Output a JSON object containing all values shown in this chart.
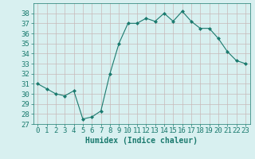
{
  "x": [
    0,
    1,
    2,
    3,
    4,
    5,
    6,
    7,
    8,
    9,
    10,
    11,
    12,
    13,
    14,
    15,
    16,
    17,
    18,
    19,
    20,
    21,
    22,
    23
  ],
  "y": [
    31,
    30.5,
    30,
    29.8,
    30.3,
    27.5,
    27.7,
    28.3,
    32,
    35,
    37,
    37,
    37.5,
    37.2,
    38,
    37.2,
    38.2,
    37.2,
    36.5,
    36.5,
    35.5,
    34.2,
    33.3,
    33
  ],
  "line_color": "#1a7a6e",
  "marker": "D",
  "marker_size": 2,
  "bg_color": "#d8f0f0",
  "grid_color": "#c8b8b8",
  "xlabel": "Humidex (Indice chaleur)",
  "ylim": [
    27,
    39
  ],
  "xlim": [
    -0.5,
    23.5
  ],
  "yticks": [
    27,
    28,
    29,
    30,
    31,
    32,
    33,
    34,
    35,
    36,
    37,
    38
  ],
  "xticks": [
    0,
    1,
    2,
    3,
    4,
    5,
    6,
    7,
    8,
    9,
    10,
    11,
    12,
    13,
    14,
    15,
    16,
    17,
    18,
    19,
    20,
    21,
    22,
    23
  ],
  "axis_color": "#1a7a6e",
  "xlabel_fontsize": 7,
  "tick_fontsize": 6.5
}
